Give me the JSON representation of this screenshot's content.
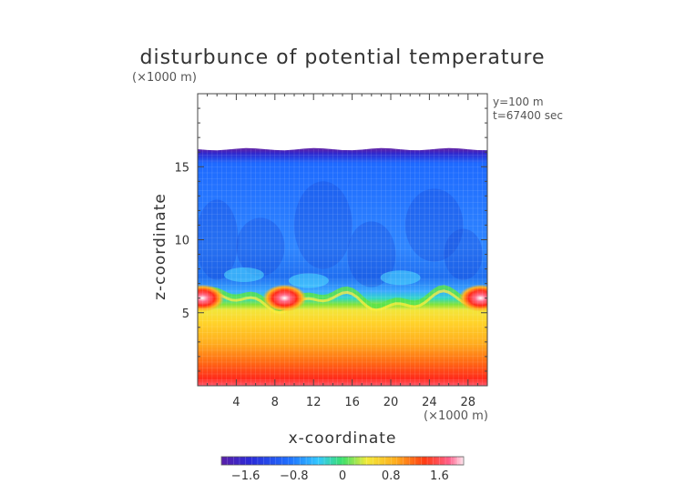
{
  "chart_data": {
    "type": "heatmap",
    "title": "disturbunce of potential temperature",
    "xlabel": "x-coordinate",
    "ylabel": "z-coordinate",
    "x_unit": "(×1000 m)",
    "z_unit": "(×1000 m)",
    "xlim": [
      0,
      30
    ],
    "zlim": [
      0,
      20
    ],
    "x_ticks": [
      "4",
      "8",
      "12",
      "16",
      "20",
      "24",
      "28"
    ],
    "z_ticks": [
      "5",
      "10",
      "15"
    ],
    "annotations": [
      "y=100 m",
      "t=67400 sec"
    ],
    "colorbar": {
      "range": [
        -2.0,
        2.0
      ],
      "tick_labels": [
        "−1.6",
        "−0.8",
        "0",
        "0.8",
        "1.6"
      ],
      "tick_values": [
        -1.6,
        -0.8,
        0,
        0.8,
        1.6
      ],
      "colormap": "rainbow (purple → blue → cyan → green → yellow → orange → red → pink/white)"
    },
    "field_description": {
      "data_top_z": 16.2,
      "upper_layer_value": -1.0,
      "inversion_z": 6.0,
      "lower_layer_surface_value": 1.8,
      "hot_lobes_x": [
        0.5,
        9.0,
        29.3
      ]
    }
  }
}
